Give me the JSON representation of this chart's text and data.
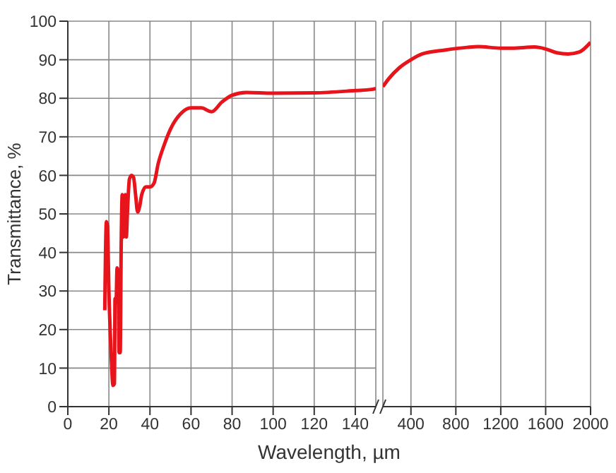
{
  "chart_data": [
    {
      "type": "line",
      "xlabel": "Wavelength, µm",
      "ylabel": "Transmittance, %",
      "xlim": [
        0,
        150
      ],
      "xticks": [
        0,
        20,
        40,
        60,
        80,
        100,
        120,
        140
      ],
      "ylim": [
        0,
        100
      ],
      "yticks": [
        0,
        10,
        20,
        30,
        40,
        50,
        60,
        70,
        80,
        90,
        100
      ],
      "grid": true,
      "series": [
        {
          "color": "#e8141c",
          "x": [
            18,
            18.8,
            19.3,
            20,
            21,
            22,
            22.7,
            23,
            23.5,
            24,
            24.5,
            25,
            25.5,
            26,
            26.5,
            27,
            27.5,
            28,
            28.5,
            29,
            30,
            31,
            32,
            33,
            34,
            35,
            36,
            38,
            40,
            42,
            44,
            47,
            50,
            55,
            60,
            65,
            70,
            75,
            80,
            87,
            100,
            120,
            140,
            148,
            150
          ],
          "values": [
            25,
            48,
            47,
            30,
            15,
            5.5,
            6,
            28,
            27,
            36,
            35,
            14,
            14,
            42,
            55,
            44,
            48,
            55,
            44,
            50,
            59,
            60,
            59.5,
            55,
            50.5,
            52,
            55,
            57,
            57,
            58,
            63,
            68,
            72,
            76,
            77.5,
            77.5,
            76.5,
            79,
            80.8,
            81.5,
            81.3,
            81.4,
            82,
            82.3,
            82.5
          ]
        }
      ]
    },
    {
      "type": "line",
      "xlim": [
        150,
        2000
      ],
      "xticks": [
        400,
        800,
        1200,
        1600,
        2000
      ],
      "ylim": [
        0,
        100
      ],
      "yticks": [
        0,
        10,
        20,
        30,
        40,
        50,
        60,
        70,
        80,
        90,
        100
      ],
      "grid": true,
      "tick_labels": "x",
      "series": [
        {
          "color": "#e8141c",
          "x": [
            150,
            200,
            300,
            400,
            500,
            700,
            900,
            1000,
            1200,
            1300,
            1500,
            1600,
            1700,
            1800,
            1900,
            2000
          ],
          "values": [
            83,
            85,
            88,
            90,
            91.5,
            92.5,
            93.2,
            93.4,
            93,
            93,
            93.3,
            92.8,
            91.8,
            91.5,
            92,
            94.5
          ]
        }
      ]
    }
  ]
}
